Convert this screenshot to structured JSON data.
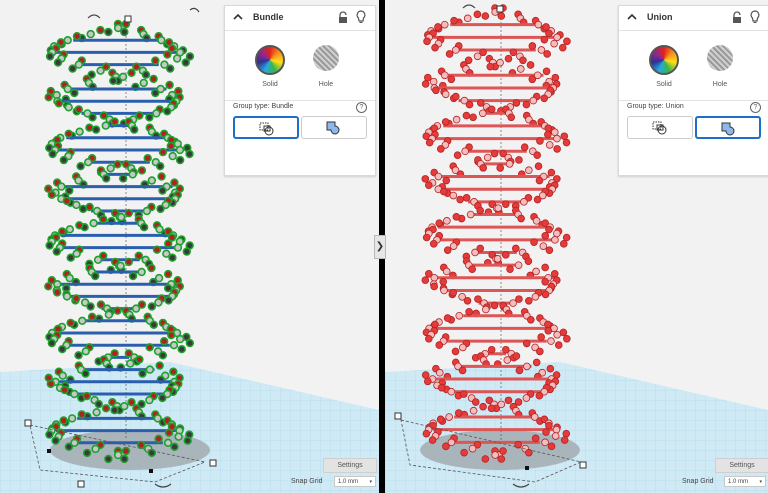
{
  "panels": [
    {
      "id": "left",
      "object_color": "green",
      "inspector": {
        "title": "Bundle",
        "solid_label": "Solid",
        "hole_label": "Hole",
        "group_type_label": "Group type: Bundle",
        "help": "?",
        "selected_group_type": "bundle"
      },
      "settings_label": "Settings",
      "snap_grid_label": "Snap Grid",
      "snap_grid_value": "1.0 mm"
    },
    {
      "id": "right",
      "object_color": "red",
      "inspector": {
        "title": "Union",
        "solid_label": "Solid",
        "hole_label": "Hole",
        "group_type_label": "Group type: Union",
        "help": "?",
        "selected_group_type": "union"
      },
      "settings_label": "Settings",
      "snap_grid_label": "Snap Grid",
      "snap_grid_value": "1.0 mm"
    }
  ],
  "colors": {
    "grid_plane": "#cfe9f5",
    "bundle_outline": "#1fa12e",
    "union_fill": "#e53b3b",
    "selected_button_border": "#1f6ec7"
  },
  "icons": [
    "chevron-up-icon",
    "lock-icon",
    "lightbulb-icon",
    "help-icon",
    "bundle-group-icon",
    "union-group-icon",
    "rotate-arrow-icon"
  ]
}
